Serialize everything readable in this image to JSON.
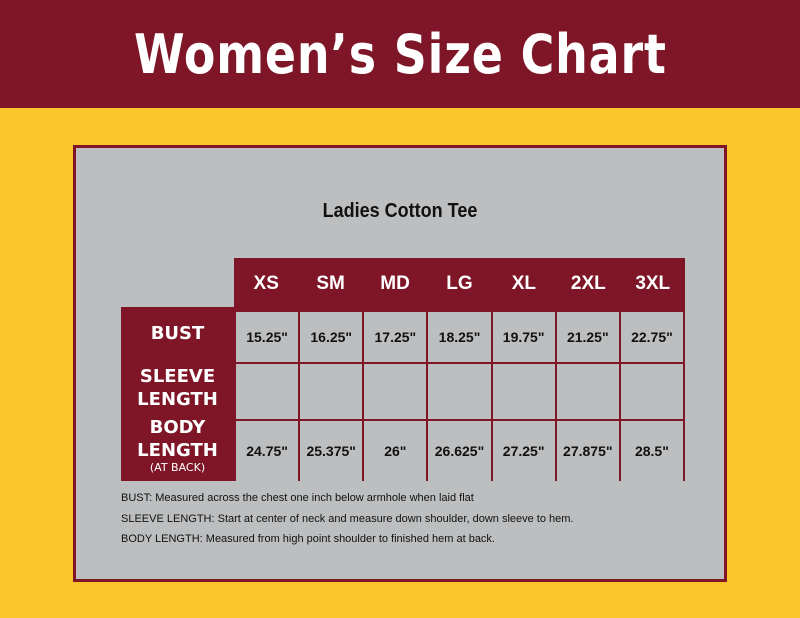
{
  "banner": {
    "title": "Women’s Size Chart"
  },
  "colors": {
    "maroon": "#7e1628",
    "yellow": "#fcc52c",
    "grey": "#bcbec0"
  },
  "table": {
    "subtitle": "Ladies Cotton Tee",
    "sizes": [
      "XS",
      "SM",
      "MD",
      "LG",
      "XL",
      "2XL",
      "3XL"
    ],
    "rows": [
      {
        "label": "BUST",
        "values": [
          "15.25\"",
          "16.25\"",
          "17.25\"",
          "18.25\"",
          "19.75\"",
          "21.25\"",
          "22.75\""
        ]
      },
      {
        "label": "SLEEVE LENGTH",
        "values": [
          "",
          "",
          "",
          "",
          "",
          "",
          ""
        ]
      },
      {
        "label": "BODY LENGTH",
        "sublabel": "(AT BACK)",
        "values": [
          "24.75\"",
          "25.375\"",
          "26\"",
          "26.625\"",
          "27.25\"",
          "27.875\"",
          "28.5\""
        ]
      }
    ]
  },
  "notes": [
    {
      "term": "BUST:",
      "text": " Measured across the chest one inch below armhole when laid flat"
    },
    {
      "term": "SLEEVE LENGTH:",
      "text": " Start at center of neck and measure down shoulder, down sleeve to hem."
    },
    {
      "term": "BODY LENGTH:",
      "text": " Measured from high point shoulder to finished hem at back."
    }
  ]
}
